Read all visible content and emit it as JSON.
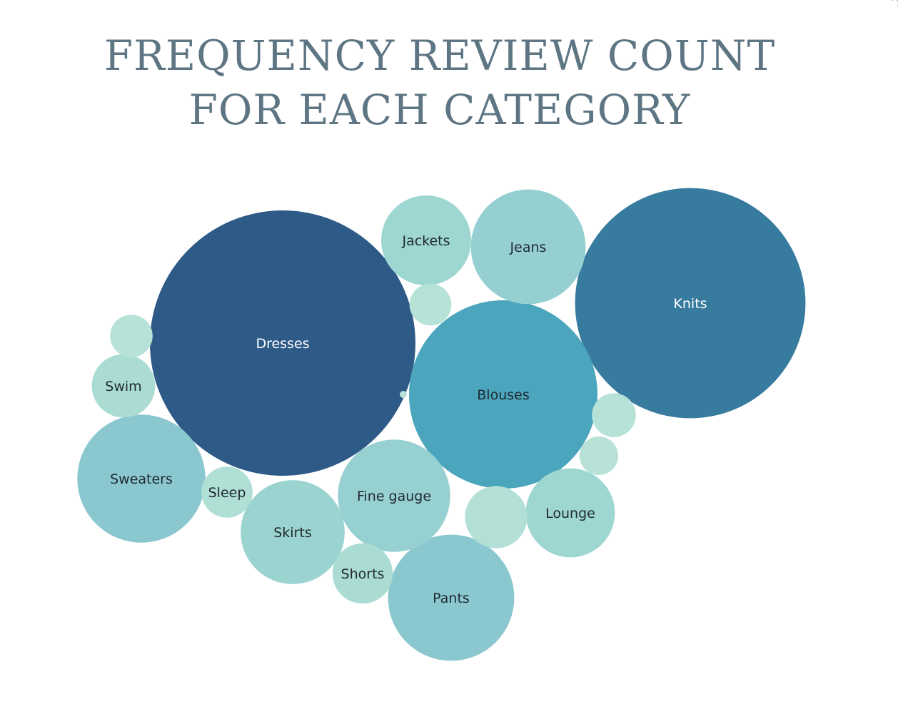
{
  "chart_data": {
    "type": "bubble",
    "title_lines": [
      "FREQUENCY REVIEW COUNT",
      "FOR EACH CATEGORY"
    ],
    "bubbles": [
      {
        "label": "Dresses",
        "value": 6145,
        "color": "#2e5a87"
      },
      {
        "label": "Knits",
        "value": 4626,
        "color": "#377b9f"
      },
      {
        "label": "Blouses",
        "value": 3097,
        "color": "#4aa5bd"
      },
      {
        "label": "Sweaters",
        "value": 1428,
        "color": "#8ac7cf"
      },
      {
        "label": "Pants",
        "value": 1388,
        "color": "#8ac7cf"
      },
      {
        "label": "Jeans",
        "value": 1147,
        "color": "#95cfd1"
      },
      {
        "label": "Fine gauge",
        "value": 1100,
        "color": "#97d0d1"
      },
      {
        "label": "Skirts",
        "value": 945,
        "color": "#9ad3d0"
      },
      {
        "label": "Jackets",
        "value": 704,
        "color": "#9ed6d1"
      },
      {
        "label": "Lounge",
        "value": 691,
        "color": "#9ed6d1"
      },
      {
        "label": "Swim",
        "value": 350,
        "color": "#aadcd3"
      },
      {
        "label": "Shorts",
        "value": 317,
        "color": "#aadcd3"
      },
      {
        "label": "Sleep",
        "value": 228,
        "color": "#b0dfd6"
      },
      {
        "label": "",
        "value": 337,
        "color": "#b2e0d6"
      },
      {
        "label": "",
        "value": 158,
        "color": "#b7e2d7"
      },
      {
        "label": "",
        "value": 168,
        "color": "#b7e2d7"
      },
      {
        "label": "",
        "value": 152,
        "color": "#b7e2d7"
      },
      {
        "label": "",
        "value": 130,
        "color": "#b8e2d8"
      },
      {
        "label": "",
        "value": 2,
        "color": "#b8e2d8"
      }
    ]
  }
}
